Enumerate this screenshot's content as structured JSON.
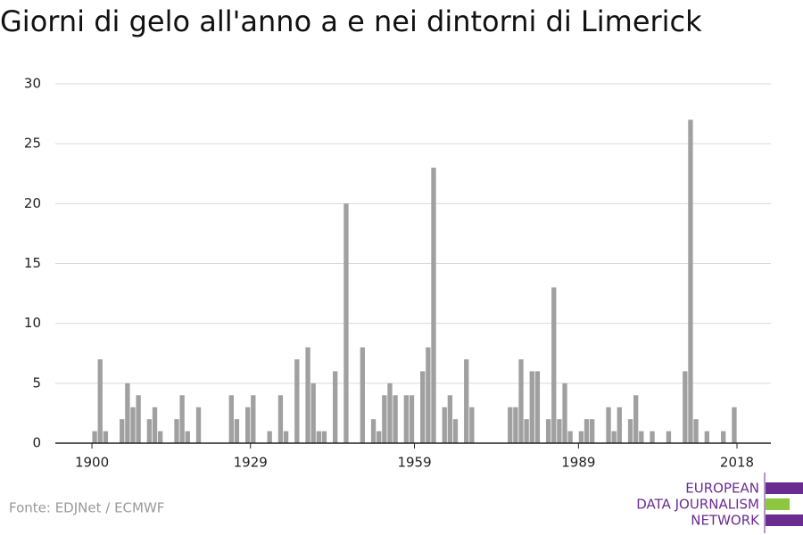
{
  "chart_data": {
    "type": "bar",
    "title": "Giorni di gelo all'anno a e nei dintorni di Limerick",
    "source": "Fonte: EDJNet / ECMWF",
    "logo": [
      "EUROPEAN",
      "DATA JOURNALISM",
      "NETWORK"
    ],
    "color": "#a0a0a0",
    "x": [
      1900,
      1901,
      1902,
      1905,
      1906,
      1907,
      1908,
      1910,
      1911,
      1912,
      1915,
      1916,
      1917,
      1919,
      1925,
      1926,
      1928,
      1929,
      1932,
      1934,
      1935,
      1937,
      1939,
      1940,
      1941,
      1942,
      1944,
      1946,
      1949,
      1951,
      1952,
      1953,
      1954,
      1955,
      1957,
      1958,
      1960,
      1961,
      1962,
      1964,
      1965,
      1966,
      1968,
      1969,
      1976,
      1977,
      1978,
      1979,
      1980,
      1981,
      1983,
      1984,
      1985,
      1986,
      1987,
      1989,
      1990,
      1991,
      1994,
      1995,
      1996,
      1998,
      1999,
      2000,
      2002,
      2005,
      2008,
      2009,
      2010,
      2012,
      2015,
      2017
    ],
    "values": [
      1,
      7,
      1,
      2,
      5,
      3,
      4,
      2,
      3,
      1,
      2,
      4,
      1,
      3,
      4,
      2,
      3,
      4,
      1,
      4,
      1,
      7,
      8,
      5,
      1,
      1,
      6,
      20,
      8,
      2,
      1,
      4,
      5,
      4,
      4,
      4,
      6,
      8,
      23,
      3,
      4,
      2,
      7,
      3,
      3,
      3,
      7,
      2,
      6,
      6,
      2,
      13,
      2,
      5,
      1,
      1,
      2,
      2,
      3,
      1,
      3,
      2,
      4,
      1,
      1,
      1,
      6,
      27,
      2,
      1,
      1,
      3
    ],
    "xlim": [
      1893.3,
      2024.2
    ],
    "xticks": [
      1900,
      1929,
      1959,
      1989,
      2018
    ],
    "ylim": [
      0,
      30
    ],
    "yticks": [
      0,
      5,
      10,
      15,
      20,
      25,
      30
    ],
    "grid": true
  }
}
